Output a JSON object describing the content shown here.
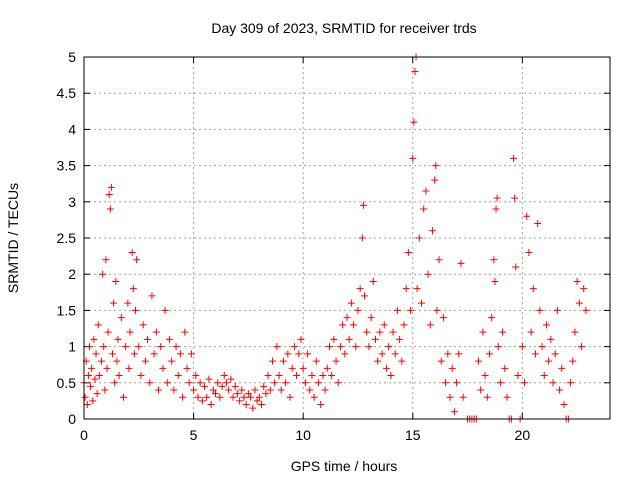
{
  "chart_data": {
    "type": "scatter",
    "title": "Day 309 of 2023, SRMTID for receiver trds",
    "xlabel": "GPS time / hours",
    "ylabel": "SRMTID / TECUs",
    "xlim": [
      0,
      24
    ],
    "ylim": [
      0,
      5
    ],
    "xticks": [
      0,
      5,
      10,
      15,
      20
    ],
    "xtick_labels": [
      "0",
      "5",
      "10",
      "15",
      "20"
    ],
    "yticks": [
      0,
      0.5,
      1,
      1.5,
      2,
      2.5,
      3,
      3.5,
      4,
      4.5,
      5
    ],
    "ytick_labels": [
      "0",
      "0.5",
      "1",
      "1.5",
      "2",
      "2.5",
      "3",
      "3.5",
      "4",
      "4.5",
      "5"
    ],
    "grid": true,
    "marker": "plus",
    "color": "#ff0000",
    "series": [
      {
        "name": "SRMTID",
        "points": [
          [
            0.0,
            0.5
          ],
          [
            0.05,
            0.3
          ],
          [
            0.1,
            0.8
          ],
          [
            0.15,
            0.2
          ],
          [
            0.2,
            0.6
          ],
          [
            0.25,
            1.0
          ],
          [
            0.3,
            0.45
          ],
          [
            0.35,
            0.7
          ],
          [
            0.4,
            0.25
          ],
          [
            0.45,
            1.1
          ],
          [
            0.5,
            0.55
          ],
          [
            0.55,
            0.9
          ],
          [
            0.6,
            0.35
          ],
          [
            0.65,
            1.3
          ],
          [
            0.7,
            0.6
          ],
          [
            0.8,
            0.8
          ],
          [
            0.85,
            2.0
          ],
          [
            0.9,
            1.0
          ],
          [
            0.95,
            0.4
          ],
          [
            1.0,
            2.2
          ],
          [
            1.05,
            0.7
          ],
          [
            1.1,
            1.2
          ],
          [
            1.15,
            3.1
          ],
          [
            1.2,
            2.9
          ],
          [
            1.25,
            3.2
          ],
          [
            1.3,
            0.9
          ],
          [
            1.35,
            1.6
          ],
          [
            1.4,
            0.5
          ],
          [
            1.45,
            1.9
          ],
          [
            1.5,
            0.8
          ],
          [
            1.55,
            1.1
          ],
          [
            1.6,
            0.6
          ],
          [
            1.7,
            1.4
          ],
          [
            1.8,
            0.3
          ],
          [
            1.9,
            1.0
          ],
          [
            2.0,
            1.6
          ],
          [
            2.05,
            0.7
          ],
          [
            2.1,
            1.2
          ],
          [
            2.2,
            2.3
          ],
          [
            2.25,
            1.8
          ],
          [
            2.3,
            0.9
          ],
          [
            2.35,
            1.5
          ],
          [
            2.4,
            2.2
          ],
          [
            2.5,
            1.0
          ],
          [
            2.6,
            0.6
          ],
          [
            2.7,
            1.3
          ],
          [
            2.8,
            0.8
          ],
          [
            2.9,
            1.1
          ],
          [
            3.0,
            0.5
          ],
          [
            3.1,
            1.7
          ],
          [
            3.2,
            0.9
          ],
          [
            3.3,
            1.2
          ],
          [
            3.4,
            0.4
          ],
          [
            3.5,
            1.0
          ],
          [
            3.6,
            0.7
          ],
          [
            3.7,
            1.5
          ],
          [
            3.8,
            0.5
          ],
          [
            3.9,
            1.1
          ],
          [
            4.0,
            0.8
          ],
          [
            4.1,
            0.4
          ],
          [
            4.2,
            1.0
          ],
          [
            4.3,
            0.6
          ],
          [
            4.4,
            0.9
          ],
          [
            4.5,
            0.3
          ],
          [
            4.6,
            1.2
          ],
          [
            4.7,
            0.7
          ],
          [
            4.8,
            0.5
          ],
          [
            4.9,
            0.9
          ],
          [
            5.0,
            0.4
          ],
          [
            5.1,
            0.6
          ],
          [
            5.2,
            0.3
          ],
          [
            5.3,
            0.5
          ],
          [
            5.4,
            0.25
          ],
          [
            5.5,
            0.45
          ],
          [
            5.6,
            0.3
          ],
          [
            5.7,
            0.55
          ],
          [
            5.8,
            0.2
          ],
          [
            5.9,
            0.4
          ],
          [
            6.0,
            0.35
          ],
          [
            6.1,
            0.5
          ],
          [
            6.2,
            0.3
          ],
          [
            6.3,
            0.45
          ],
          [
            6.4,
            0.6
          ],
          [
            6.5,
            0.5
          ],
          [
            6.6,
            0.4
          ],
          [
            6.7,
            0.55
          ],
          [
            6.8,
            0.3
          ],
          [
            6.9,
            0.45
          ],
          [
            7.0,
            0.35
          ],
          [
            7.1,
            0.25
          ],
          [
            7.2,
            0.4
          ],
          [
            7.3,
            0.3
          ],
          [
            7.4,
            0.2
          ],
          [
            7.5,
            0.35
          ],
          [
            7.6,
            0.3
          ],
          [
            7.7,
            0.15
          ],
          [
            7.8,
            0.4
          ],
          [
            7.9,
            0.25
          ],
          [
            8.0,
            0.3
          ],
          [
            8.1,
            0.2
          ],
          [
            8.2,
            0.45
          ],
          [
            8.3,
            0.35
          ],
          [
            8.4,
            0.6
          ],
          [
            8.5,
            0.4
          ],
          [
            8.6,
            0.8
          ],
          [
            8.7,
            0.5
          ],
          [
            8.8,
            1.0
          ],
          [
            8.9,
            0.6
          ],
          [
            9.0,
            0.4
          ],
          [
            9.1,
            0.8
          ],
          [
            9.2,
            0.5
          ],
          [
            9.3,
            0.9
          ],
          [
            9.4,
            0.3
          ],
          [
            9.5,
            0.7
          ],
          [
            9.6,
            1.0
          ],
          [
            9.7,
            0.6
          ],
          [
            9.8,
            0.9
          ],
          [
            9.9,
            1.1
          ],
          [
            10.0,
            0.7
          ],
          [
            10.1,
            0.5
          ],
          [
            10.2,
            0.9
          ],
          [
            10.3,
            0.4
          ],
          [
            10.4,
            0.6
          ],
          [
            10.5,
            0.3
          ],
          [
            10.6,
            0.8
          ],
          [
            10.7,
            0.5
          ],
          [
            10.8,
            0.2
          ],
          [
            10.9,
            0.6
          ],
          [
            11.0,
            0.4
          ],
          [
            11.1,
            0.7
          ],
          [
            11.2,
            1.0
          ],
          [
            11.3,
            0.6
          ],
          [
            11.4,
            1.1
          ],
          [
            11.5,
            0.8
          ],
          [
            11.6,
            0.5
          ],
          [
            11.7,
            1.0
          ],
          [
            11.8,
            1.3
          ],
          [
            11.9,
            0.9
          ],
          [
            12.0,
            1.4
          ],
          [
            12.1,
            1.1
          ],
          [
            12.2,
            1.6
          ],
          [
            12.3,
            1.3
          ],
          [
            12.4,
            1.0
          ],
          [
            12.5,
            1.5
          ],
          [
            12.6,
            1.8
          ],
          [
            12.7,
            2.5
          ],
          [
            12.75,
            2.95
          ],
          [
            12.8,
            1.7
          ],
          [
            12.9,
            1.2
          ],
          [
            13.0,
            1.0
          ],
          [
            13.1,
            1.4
          ],
          [
            13.2,
            1.9
          ],
          [
            13.3,
            1.1
          ],
          [
            13.4,
            0.8
          ],
          [
            13.5,
            1.2
          ],
          [
            13.6,
            0.9
          ],
          [
            13.7,
            1.3
          ],
          [
            13.8,
            0.7
          ],
          [
            13.9,
            1.0
          ],
          [
            14.0,
            0.6
          ],
          [
            14.1,
            1.2
          ],
          [
            14.2,
            0.9
          ],
          [
            14.3,
            1.5
          ],
          [
            14.4,
            1.1
          ],
          [
            14.5,
            0.8
          ],
          [
            14.6,
            1.3
          ],
          [
            14.7,
            1.8
          ],
          [
            14.8,
            2.3
          ],
          [
            14.9,
            1.5
          ],
          [
            15.0,
            3.6
          ],
          [
            15.05,
            4.1
          ],
          [
            15.1,
            4.8
          ],
          [
            15.15,
            5.0
          ],
          [
            15.2,
            1.8
          ],
          [
            15.3,
            2.5
          ],
          [
            15.4,
            1.6
          ],
          [
            15.5,
            2.9
          ],
          [
            15.6,
            3.15
          ],
          [
            15.7,
            2.0
          ],
          [
            15.8,
            1.3
          ],
          [
            15.9,
            2.6
          ],
          [
            16.0,
            3.3
          ],
          [
            16.05,
            3.5
          ],
          [
            16.1,
            1.5
          ],
          [
            16.2,
            2.2
          ],
          [
            16.3,
            0.8
          ],
          [
            16.4,
            1.4
          ],
          [
            16.5,
            0.5
          ],
          [
            16.6,
            0.9
          ],
          [
            16.7,
            0.3
          ],
          [
            16.8,
            0.7
          ],
          [
            16.9,
            0.1
          ],
          [
            17.0,
            0.5
          ],
          [
            17.1,
            0.9
          ],
          [
            17.2,
            2.15
          ],
          [
            17.3,
            0.3
          ],
          [
            17.5,
            0.0
          ],
          [
            17.6,
            0.0
          ],
          [
            17.7,
            0.0
          ],
          [
            17.8,
            0.0
          ],
          [
            17.9,
            0.0
          ],
          [
            18.0,
            0.8
          ],
          [
            18.1,
            0.4
          ],
          [
            18.2,
            1.2
          ],
          [
            18.3,
            0.6
          ],
          [
            18.4,
            0.3
          ],
          [
            18.5,
            0.9
          ],
          [
            18.6,
            1.4
          ],
          [
            18.7,
            2.2
          ],
          [
            18.75,
            1.9
          ],
          [
            18.8,
            2.9
          ],
          [
            18.85,
            3.05
          ],
          [
            18.9,
            1.0
          ],
          [
            19.0,
            0.5
          ],
          [
            19.1,
            1.2
          ],
          [
            19.2,
            0.7
          ],
          [
            19.3,
            0.3
          ],
          [
            19.4,
            0.0
          ],
          [
            19.5,
            0.0
          ],
          [
            19.6,
            3.6
          ],
          [
            19.65,
            3.05
          ],
          [
            19.7,
            2.1
          ],
          [
            19.8,
            0.6
          ],
          [
            19.9,
            0.0
          ],
          [
            20.0,
            1.0
          ],
          [
            20.1,
            0.5
          ],
          [
            20.2,
            2.8
          ],
          [
            20.3,
            2.3
          ],
          [
            20.4,
            1.2
          ],
          [
            20.5,
            1.8
          ],
          [
            20.6,
            0.9
          ],
          [
            20.7,
            2.7
          ],
          [
            20.8,
            1.5
          ],
          [
            20.9,
            1.0
          ],
          [
            21.0,
            0.6
          ],
          [
            21.1,
            1.3
          ],
          [
            21.2,
            0.8
          ],
          [
            21.3,
            1.1
          ],
          [
            21.4,
            0.5
          ],
          [
            21.5,
            0.9
          ],
          [
            21.6,
            1.5
          ],
          [
            21.7,
            0.4
          ],
          [
            21.8,
            0.7
          ],
          [
            21.9,
            0.2
          ],
          [
            22.0,
            0.0
          ],
          [
            22.1,
            0.0
          ],
          [
            22.2,
            0.5
          ],
          [
            22.3,
            0.8
          ],
          [
            22.4,
            1.2
          ],
          [
            22.5,
            1.9
          ],
          [
            22.6,
            1.6
          ],
          [
            22.7,
            1.0
          ],
          [
            22.8,
            1.8
          ],
          [
            22.9,
            1.5
          ]
        ]
      }
    ]
  }
}
